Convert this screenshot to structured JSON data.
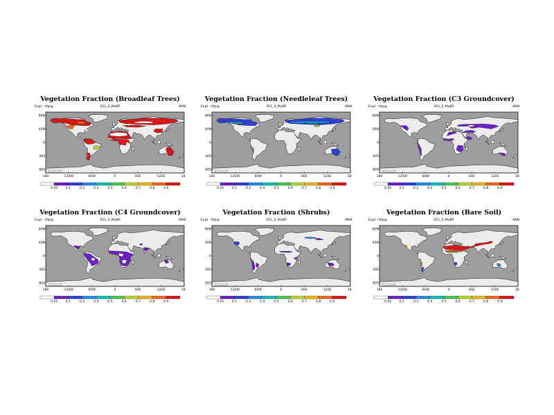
{
  "panels": [
    {
      "title": "Vegetation Fraction (Broadleaf Trees)",
      "expt_label": "Expt - tfqsg",
      "run_label": "051_0_MoBP",
      "season": "ANN",
      "map_type": "broadleaf",
      "lat_ticks": [
        "80N",
        "40N",
        "0",
        "40S",
        "80S"
      ],
      "lon_ticks": [
        "180",
        "120W",
        "60W",
        "0",
        "60E",
        "120E",
        "180"
      ],
      "colorbar_ticks": [
        "0.05",
        "0.1",
        "0.2",
        "0.4",
        "0.5",
        "0.6",
        "0.7",
        "0.8",
        "0.9"
      ]
    },
    {
      "title": "Vegetation Fraction (Needleleaf Trees)",
      "expt_label": "Expt - tfqsg",
      "run_label": "051_0_MoBP",
      "season": "ANN",
      "map_type": "needleleaf",
      "lat_ticks": [
        "80N",
        "40N",
        "0",
        "40S",
        "80S"
      ],
      "lon_ticks": [
        "180",
        "120W",
        "60W",
        "0",
        "60E",
        "120E",
        "180"
      ],
      "colorbar_ticks": [
        "0.05",
        "0.1",
        "0.2",
        "0.4",
        "0.5",
        "0.6",
        "0.7",
        "0.8",
        "0.9"
      ]
    },
    {
      "title": "Vegetation Fraction (C3 Groundcover)",
      "expt_label": "Expt - tfqsg",
      "run_label": "051_0_MoBP",
      "season": "ANN",
      "map_type": "c3",
      "lat_ticks": [
        "80N",
        "40N",
        "0",
        "40S",
        "80S"
      ],
      "lon_ticks": [
        "180",
        "120W",
        "60W",
        "0",
        "60E",
        "120E",
        "180"
      ],
      "colorbar_ticks": [
        "0.05",
        "0.1",
        "0.2",
        "0.4",
        "0.5",
        "0.6",
        "0.7",
        "0.8",
        "0.9"
      ]
    },
    {
      "title": "Vegetation Fraction (C4 Groundcover)",
      "expt_label": "Expt - tfqsg",
      "run_label": "051_0_MoBP",
      "season": "ANN",
      "map_type": "c4",
      "lat_ticks": [
        "80N",
        "40N",
        "0",
        "40S",
        "80S"
      ],
      "lon_ticks": [
        "180",
        "120W",
        "60W",
        "0",
        "60E",
        "120E",
        "180"
      ],
      "colorbar_ticks": [
        "0.05",
        "0.1",
        "0.2",
        "0.4",
        "0.5",
        "0.6",
        "0.7",
        "0.8",
        "0.9"
      ]
    },
    {
      "title": "Vegetation Fraction (Shrubs)",
      "expt_label": "Expt - tfqsg",
      "run_label": "051_0_MoBP",
      "season": "ANN",
      "map_type": "shrubs",
      "lat_ticks": [
        "80N",
        "40N",
        "0",
        "40S",
        "80S"
      ],
      "lon_ticks": [
        "180",
        "120W",
        "60W",
        "0",
        "60E",
        "120E",
        "180"
      ],
      "colorbar_ticks": [
        "0.05",
        "0.1",
        "0.2",
        "0.4",
        "0.5",
        "0.6",
        "0.7",
        "0.8",
        "0.9"
      ]
    },
    {
      "title": "Vegetation Fraction (Bare Soil)",
      "expt_label": "Expt - tfqsg",
      "run_label": "051_0_MoBP",
      "season": "ANN",
      "map_type": "baresoil",
      "lat_ticks": [
        "80N",
        "40N",
        "0",
        "40S",
        "80S"
      ],
      "lon_ticks": [
        "180",
        "120W",
        "60W",
        "0",
        "60E",
        "120E",
        "180"
      ],
      "colorbar_ticks": [
        "0.05",
        "0.1",
        "0.2",
        "0.4",
        "0.5",
        "0.6",
        "0.7",
        "0.8",
        "0.9"
      ]
    }
  ],
  "colors": {
    "ocean": "#9e9e9e",
    "land": "#ececec",
    "colorbar": [
      "#ffffff",
      "#6e20c8",
      "#2f3fd8",
      "#1f8fe8",
      "#15c0b8",
      "#48c850",
      "#b8d830",
      "#f0b818",
      "#f06818",
      "#d81818"
    ]
  }
}
